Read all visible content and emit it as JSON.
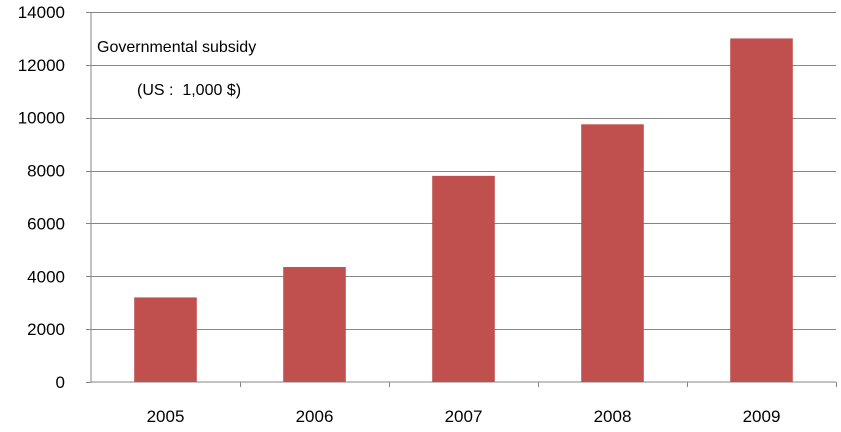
{
  "chart_data": {
    "type": "bar",
    "title": "Governmental subsidy",
    "subtitle": "(US :  1,000 $)",
    "categories": [
      "2005",
      "2006",
      "2007",
      "2008",
      "2009"
    ],
    "values": [
      3200,
      4350,
      7800,
      9750,
      13000
    ],
    "ylim": [
      0,
      14000
    ],
    "yticks": [
      0,
      2000,
      4000,
      6000,
      8000,
      10000,
      12000,
      14000
    ],
    "xlabel": "",
    "ylabel": "",
    "grid": true,
    "legend": "none",
    "bar_color": "#c0504d"
  }
}
